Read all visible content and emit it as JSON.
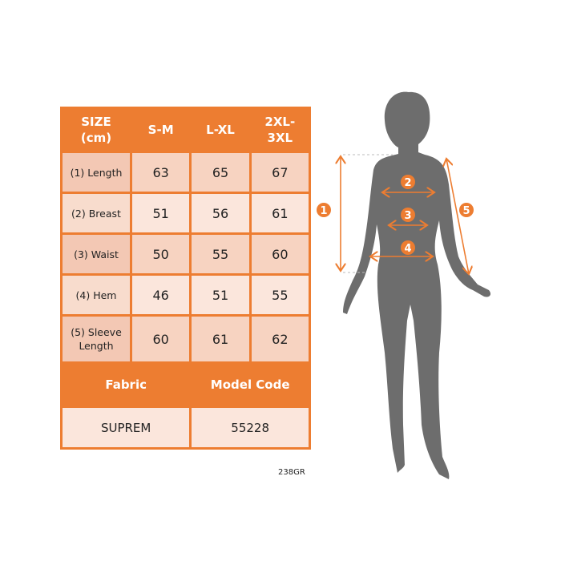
{
  "table": {
    "headers": [
      "SIZE\n(cm)",
      "S-M",
      "L-XL",
      "2XL-\n3XL"
    ],
    "rows": [
      {
        "label": "(1) Length",
        "values": [
          "63",
          "65",
          "67"
        ]
      },
      {
        "label": "(2) Breast",
        "values": [
          "51",
          "56",
          "61"
        ]
      },
      {
        "label": "(3) Waist",
        "values": [
          "50",
          "55",
          "60"
        ]
      },
      {
        "label": "(4) Hem",
        "values": [
          "46",
          "51",
          "55"
        ]
      },
      {
        "label": "(5) Sleeve Length",
        "values": [
          "60",
          "61",
          "62"
        ]
      }
    ],
    "footer_headers": [
      "Fabric",
      "Model Code"
    ],
    "footer_values": [
      "SUPREM",
      "55228"
    ]
  },
  "product_code": "238GR",
  "diagram": {
    "markers": [
      "1",
      "2",
      "3",
      "4",
      "5"
    ]
  },
  "colors": {
    "accent": "#ed7d31",
    "silhouette": "#6d6d6d"
  }
}
